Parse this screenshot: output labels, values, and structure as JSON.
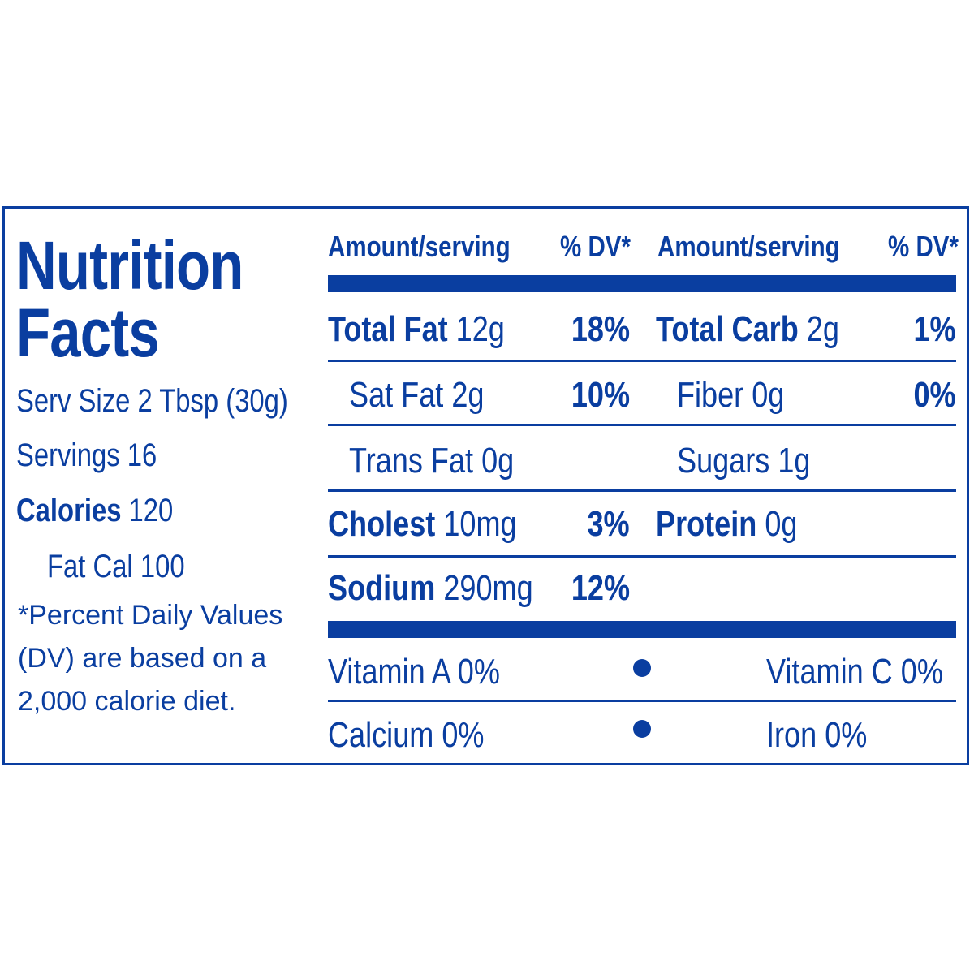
{
  "colors": {
    "ink": "#0a3ea0",
    "background": "#ffffff"
  },
  "title": {
    "line1": "Nutrition",
    "line2": "Facts"
  },
  "serving": {
    "serv_size": "Serv Size 2 Tbsp (30g)",
    "servings": "Servings 16",
    "calories_label": "Calories",
    "calories_value": " 120",
    "fat_cal": "Fat Cal 100"
  },
  "footnote": "*Percent Daily Values (DV) are based on a 2,000 calorie diet.",
  "headers": {
    "amount_left": "Amount/serving",
    "dv_left": "% DV*",
    "amount_right": "Amount/serving",
    "dv_right": "% DV*"
  },
  "nutrients_left": [
    {
      "name": "Total Fat",
      "amount": " 12g",
      "dv": "18%"
    },
    {
      "name": "Sat Fat 2g",
      "amount": "",
      "dv": "10%"
    },
    {
      "name": "Trans Fat 0g",
      "amount": "",
      "dv": ""
    },
    {
      "name": "Cholest",
      "amount": " 10mg",
      "dv": "3%"
    },
    {
      "name": "Sodium",
      "amount": " 290mg",
      "dv": "12%"
    }
  ],
  "nutrients_right": [
    {
      "name": "Total Carb",
      "amount": " 2g",
      "dv": "1%"
    },
    {
      "name": "Fiber 0g",
      "amount": "",
      "dv": "0%"
    },
    {
      "name": "Sugars 1g",
      "amount": "",
      "dv": ""
    },
    {
      "name": "Protein",
      "amount": " 0g",
      "dv": ""
    }
  ],
  "vitamins": [
    {
      "left": "Vitamin A 0%",
      "right": "Vitamin C 0%"
    },
    {
      "left": "Calcium 0%",
      "right": "Iron 0%"
    }
  ]
}
